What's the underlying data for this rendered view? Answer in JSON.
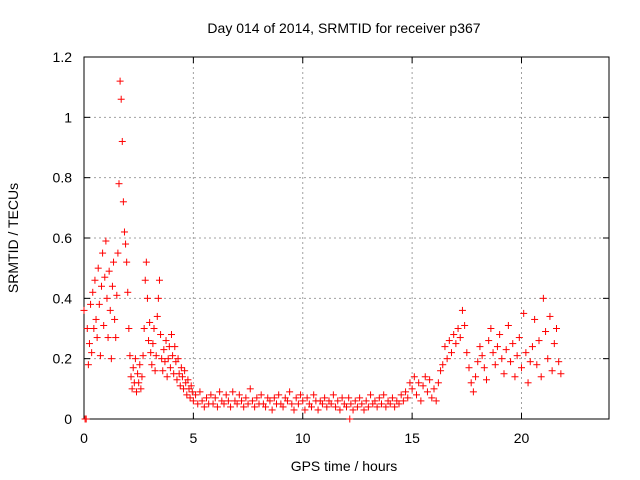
{
  "chart_data": {
    "type": "scatter",
    "title": "Day 014 of 2014, SRMTID for receiver p367",
    "xlabel": "GPS time / hours",
    "ylabel": "SRMTID / TECUs",
    "xlim": [
      0,
      24
    ],
    "ylim": [
      0,
      1.2
    ],
    "grid": true,
    "marker": "plus",
    "color": "#ff0000",
    "x_ticks": [
      0,
      5,
      10,
      15,
      20
    ],
    "x_tick_labels": [
      "0",
      "5",
      "10",
      "15",
      "20"
    ],
    "y_ticks": [
      0,
      0.2,
      0.4,
      0.6,
      0.8,
      1.0,
      1.2
    ],
    "y_tick_labels": [
      "0",
      "0.2",
      "0.4",
      "0.6",
      "0.8",
      "1",
      "1.2"
    ],
    "series": [
      {
        "name": "SRMTID",
        "points": [
          [
            0.0,
            0.36
          ],
          [
            0.05,
            0.0
          ],
          [
            0.1,
            0.0
          ],
          [
            0.15,
            0.3
          ],
          [
            0.2,
            0.18
          ],
          [
            0.25,
            0.25
          ],
          [
            0.3,
            0.38
          ],
          [
            0.35,
            0.22
          ],
          [
            0.4,
            0.42
          ],
          [
            0.45,
            0.3
          ],
          [
            0.5,
            0.46
          ],
          [
            0.55,
            0.33
          ],
          [
            0.6,
            0.27
          ],
          [
            0.65,
            0.5
          ],
          [
            0.7,
            0.38
          ],
          [
            0.75,
            0.21
          ],
          [
            0.8,
            0.44
          ],
          [
            0.85,
            0.55
          ],
          [
            0.9,
            0.31
          ],
          [
            0.95,
            0.47
          ],
          [
            1.0,
            0.59
          ],
          [
            1.05,
            0.4
          ],
          [
            1.1,
            0.27
          ],
          [
            1.15,
            0.49
          ],
          [
            1.2,
            0.36
          ],
          [
            1.25,
            0.2
          ],
          [
            1.3,
            0.44
          ],
          [
            1.35,
            0.52
          ],
          [
            1.4,
            0.33
          ],
          [
            1.45,
            0.27
          ],
          [
            1.5,
            0.41
          ],
          [
            1.55,
            0.55
          ],
          [
            1.6,
            0.78
          ],
          [
            1.65,
            1.12
          ],
          [
            1.7,
            1.06
          ],
          [
            1.75,
            0.92
          ],
          [
            1.8,
            0.72
          ],
          [
            1.85,
            0.62
          ],
          [
            1.9,
            0.58
          ],
          [
            1.95,
            0.52
          ],
          [
            2.0,
            0.42
          ],
          [
            2.05,
            0.3
          ],
          [
            2.1,
            0.21
          ],
          [
            2.15,
            0.14
          ],
          [
            2.2,
            0.1
          ],
          [
            2.25,
            0.17
          ],
          [
            2.3,
            0.12
          ],
          [
            2.35,
            0.2
          ],
          [
            2.4,
            0.09
          ],
          [
            2.45,
            0.15
          ],
          [
            2.5,
            0.12
          ],
          [
            2.55,
            0.18
          ],
          [
            2.6,
            0.1
          ],
          [
            2.65,
            0.14
          ],
          [
            2.7,
            0.21
          ],
          [
            2.75,
            0.3
          ],
          [
            2.8,
            0.46
          ],
          [
            2.85,
            0.52
          ],
          [
            2.9,
            0.4
          ],
          [
            2.95,
            0.26
          ],
          [
            3.0,
            0.32
          ],
          [
            3.05,
            0.22
          ],
          [
            3.1,
            0.18
          ],
          [
            3.15,
            0.25
          ],
          [
            3.2,
            0.3
          ],
          [
            3.25,
            0.16
          ],
          [
            3.3,
            0.21
          ],
          [
            3.35,
            0.34
          ],
          [
            3.4,
            0.4
          ],
          [
            3.45,
            0.46
          ],
          [
            3.5,
            0.28
          ],
          [
            3.55,
            0.2
          ],
          [
            3.6,
            0.16
          ],
          [
            3.65,
            0.23
          ],
          [
            3.7,
            0.19
          ],
          [
            3.75,
            0.26
          ],
          [
            3.8,
            0.14
          ],
          [
            3.85,
            0.2
          ],
          [
            3.9,
            0.24
          ],
          [
            3.95,
            0.17
          ],
          [
            4.0,
            0.28
          ],
          [
            4.05,
            0.21
          ],
          [
            4.1,
            0.15
          ],
          [
            4.15,
            0.24
          ],
          [
            4.2,
            0.19
          ],
          [
            4.25,
            0.13
          ],
          [
            4.3,
            0.2
          ],
          [
            4.35,
            0.15
          ],
          [
            4.4,
            0.11
          ],
          [
            4.45,
            0.17
          ],
          [
            4.5,
            0.14
          ],
          [
            4.55,
            0.1
          ],
          [
            4.6,
            0.16
          ],
          [
            4.65,
            0.12
          ],
          [
            4.7,
            0.08
          ],
          [
            4.75,
            0.13
          ],
          [
            4.8,
            0.1
          ],
          [
            4.85,
            0.07
          ],
          [
            4.9,
            0.11
          ],
          [
            4.95,
            0.09
          ],
          [
            5.0,
            0.06
          ],
          [
            5.1,
            0.08
          ],
          [
            5.2,
            0.05
          ],
          [
            5.3,
            0.09
          ],
          [
            5.4,
            0.06
          ],
          [
            5.5,
            0.04
          ],
          [
            5.6,
            0.07
          ],
          [
            5.7,
            0.05
          ],
          [
            5.8,
            0.08
          ],
          [
            5.9,
            0.05
          ],
          [
            6.0,
            0.07
          ],
          [
            6.1,
            0.04
          ],
          [
            6.2,
            0.09
          ],
          [
            6.3,
            0.06
          ],
          [
            6.4,
            0.05
          ],
          [
            6.5,
            0.08
          ],
          [
            6.6,
            0.06
          ],
          [
            6.7,
            0.04
          ],
          [
            6.8,
            0.09
          ],
          [
            6.9,
            0.06
          ],
          [
            7.0,
            0.05
          ],
          [
            7.1,
            0.08
          ],
          [
            7.2,
            0.06
          ],
          [
            7.3,
            0.04
          ],
          [
            7.4,
            0.07
          ],
          [
            7.5,
            0.05
          ],
          [
            7.6,
            0.1
          ],
          [
            7.7,
            0.06
          ],
          [
            7.8,
            0.04
          ],
          [
            7.9,
            0.07
          ],
          [
            8.0,
            0.05
          ],
          [
            8.1,
            0.08
          ],
          [
            8.2,
            0.05
          ],
          [
            8.3,
            0.04
          ],
          [
            8.4,
            0.07
          ],
          [
            8.5,
            0.06
          ],
          [
            8.6,
            0.03
          ],
          [
            8.7,
            0.07
          ],
          [
            8.8,
            0.05
          ],
          [
            8.9,
            0.08
          ],
          [
            9.0,
            0.05
          ],
          [
            9.1,
            0.04
          ],
          [
            9.2,
            0.07
          ],
          [
            9.3,
            0.06
          ],
          [
            9.4,
            0.09
          ],
          [
            9.5,
            0.05
          ],
          [
            9.6,
            0.03
          ],
          [
            9.7,
            0.07
          ],
          [
            9.8,
            0.05
          ],
          [
            9.9,
            0.08
          ],
          [
            10.0,
            0.06
          ],
          [
            10.1,
            0.03
          ],
          [
            10.2,
            0.07
          ],
          [
            10.3,
            0.05
          ],
          [
            10.4,
            0.04
          ],
          [
            10.5,
            0.08
          ],
          [
            10.6,
            0.06
          ],
          [
            10.7,
            0.03
          ],
          [
            10.8,
            0.06
          ],
          [
            10.9,
            0.05
          ],
          [
            11.0,
            0.07
          ],
          [
            11.1,
            0.04
          ],
          [
            11.2,
            0.06
          ],
          [
            11.3,
            0.05
          ],
          [
            11.4,
            0.08
          ],
          [
            11.5,
            0.04
          ],
          [
            11.6,
            0.06
          ],
          [
            11.7,
            0.03
          ],
          [
            11.8,
            0.07
          ],
          [
            11.9,
            0.05
          ],
          [
            12.0,
            0.04
          ],
          [
            12.1,
            0.07
          ],
          [
            12.15,
            0.0
          ],
          [
            12.2,
            0.05
          ],
          [
            12.3,
            0.03
          ],
          [
            12.4,
            0.06
          ],
          [
            12.5,
            0.04
          ],
          [
            12.6,
            0.07
          ],
          [
            12.7,
            0.05
          ],
          [
            12.8,
            0.03
          ],
          [
            12.9,
            0.06
          ],
          [
            13.0,
            0.04
          ],
          [
            13.1,
            0.08
          ],
          [
            13.2,
            0.05
          ],
          [
            13.3,
            0.06
          ],
          [
            13.4,
            0.04
          ],
          [
            13.5,
            0.07
          ],
          [
            13.6,
            0.05
          ],
          [
            13.7,
            0.08
          ],
          [
            13.8,
            0.04
          ],
          [
            13.9,
            0.06
          ],
          [
            14.0,
            0.05
          ],
          [
            14.1,
            0.07
          ],
          [
            14.2,
            0.04
          ],
          [
            14.3,
            0.06
          ],
          [
            14.4,
            0.05
          ],
          [
            14.5,
            0.08
          ],
          [
            14.6,
            0.06
          ],
          [
            14.7,
            0.09
          ],
          [
            14.8,
            0.07
          ],
          [
            14.9,
            0.12
          ],
          [
            15.0,
            0.1
          ],
          [
            15.1,
            0.14
          ],
          [
            15.2,
            0.08
          ],
          [
            15.3,
            0.12
          ],
          [
            15.4,
            0.06
          ],
          [
            15.5,
            0.11
          ],
          [
            15.6,
            0.14
          ],
          [
            15.7,
            0.09
          ],
          [
            15.8,
            0.13
          ],
          [
            15.9,
            0.07
          ],
          [
            16.0,
            0.1
          ],
          [
            16.1,
            0.06
          ],
          [
            16.2,
            0.12
          ],
          [
            16.3,
            0.16
          ],
          [
            16.4,
            0.18
          ],
          [
            16.5,
            0.24
          ],
          [
            16.6,
            0.2
          ],
          [
            16.7,
            0.26
          ],
          [
            16.8,
            0.22
          ],
          [
            16.9,
            0.28
          ],
          [
            17.0,
            0.25
          ],
          [
            17.1,
            0.3
          ],
          [
            17.2,
            0.27
          ],
          [
            17.3,
            0.36
          ],
          [
            17.4,
            0.31
          ],
          [
            17.5,
            0.22
          ],
          [
            17.6,
            0.17
          ],
          [
            17.7,
            0.12
          ],
          [
            17.8,
            0.09
          ],
          [
            17.9,
            0.14
          ],
          [
            18.0,
            0.19
          ],
          [
            18.1,
            0.24
          ],
          [
            18.2,
            0.21
          ],
          [
            18.3,
            0.17
          ],
          [
            18.4,
            0.13
          ],
          [
            18.5,
            0.26
          ],
          [
            18.6,
            0.3
          ],
          [
            18.7,
            0.22
          ],
          [
            18.8,
            0.18
          ],
          [
            18.9,
            0.24
          ],
          [
            19.0,
            0.28
          ],
          [
            19.1,
            0.2
          ],
          [
            19.2,
            0.15
          ],
          [
            19.3,
            0.23
          ],
          [
            19.4,
            0.31
          ],
          [
            19.5,
            0.19
          ],
          [
            19.6,
            0.25
          ],
          [
            19.7,
            0.14
          ],
          [
            19.8,
            0.21
          ],
          [
            19.9,
            0.27
          ],
          [
            20.0,
            0.17
          ],
          [
            20.1,
            0.35
          ],
          [
            20.2,
            0.22
          ],
          [
            20.3,
            0.12
          ],
          [
            20.4,
            0.19
          ],
          [
            20.5,
            0.24
          ],
          [
            20.6,
            0.33
          ],
          [
            20.7,
            0.18
          ],
          [
            20.8,
            0.26
          ],
          [
            20.9,
            0.14
          ],
          [
            21.0,
            0.4
          ],
          [
            21.1,
            0.29
          ],
          [
            21.2,
            0.2
          ],
          [
            21.3,
            0.34
          ],
          [
            21.4,
            0.16
          ],
          [
            21.5,
            0.25
          ],
          [
            21.6,
            0.3
          ],
          [
            21.7,
            0.19
          ],
          [
            21.8,
            0.15
          ]
        ]
      }
    ]
  }
}
